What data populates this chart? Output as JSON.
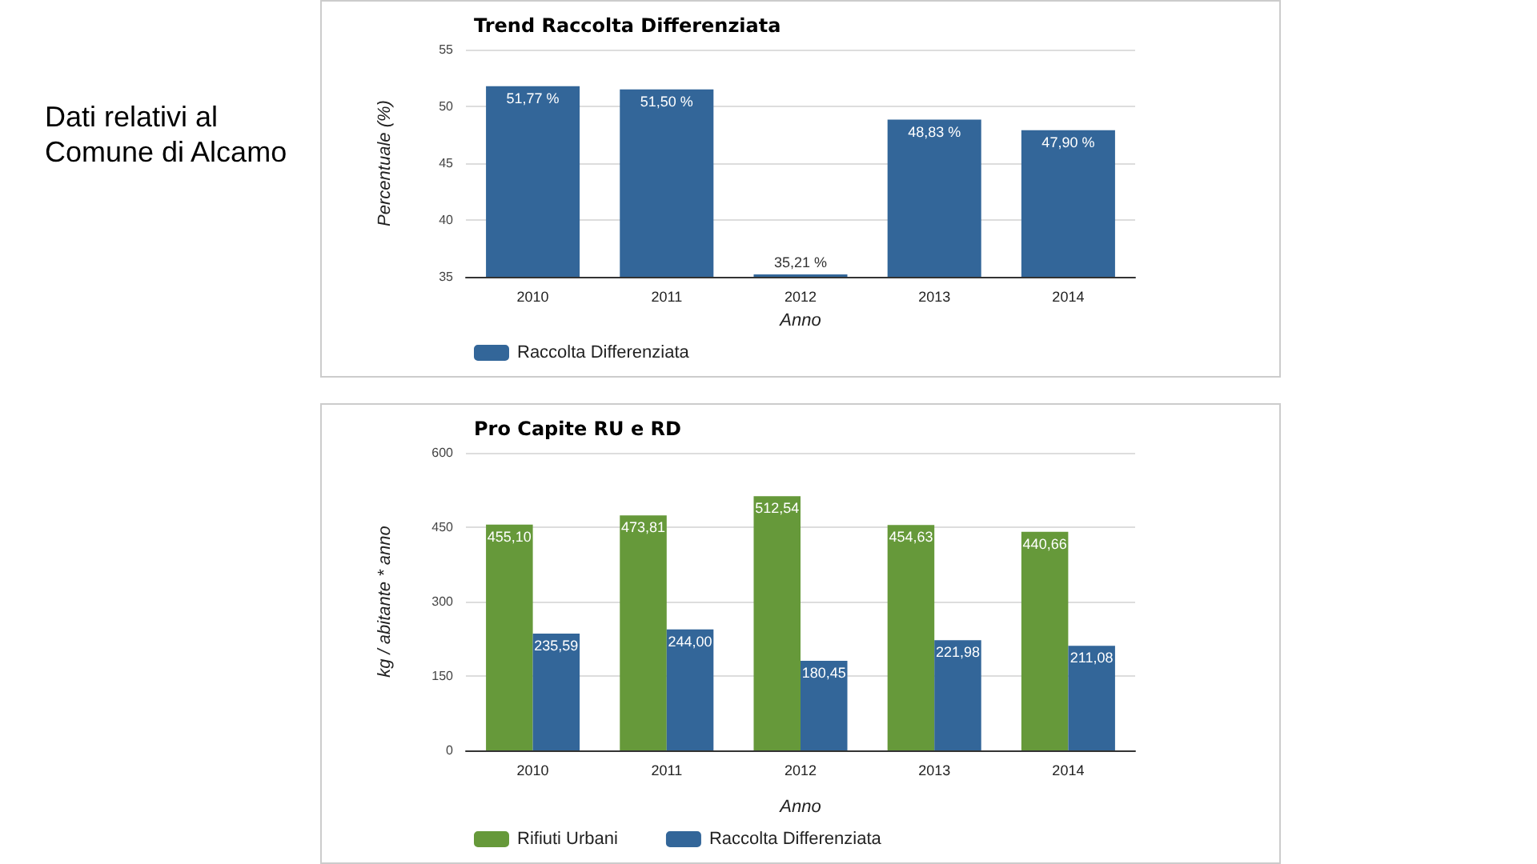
{
  "chart_data": [
    {
      "type": "other",
      "title": "Dati relativi al\nComune di Alcamo"
    },
    {
      "type": "bar",
      "title": "Trend Raccolta Differenziata",
      "xlabel": "Anno",
      "ylabel": "Percentuale (%)",
      "categories": [
        "2010",
        "2011",
        "2012",
        "2013",
        "2014"
      ],
      "series": [
        {
          "name": "Raccolta Differenziata",
          "color": "#336699",
          "values": [
            51.77,
            51.5,
            35.21,
            48.83,
            47.9
          ],
          "value_labels": [
            "51,77 %",
            "51,50 %",
            "35,21 %",
            "48,83 %",
            "47,90 %"
          ]
        }
      ],
      "ylim": [
        35,
        55
      ],
      "yticks": [
        35,
        40,
        45,
        50,
        55
      ],
      "grid": "y",
      "legend": "bottom left"
    },
    {
      "type": "bar",
      "title": "Pro Capite RU e RD",
      "xlabel": "Anno",
      "ylabel": "kg / abitante * anno",
      "categories": [
        "2010",
        "2011",
        "2012",
        "2013",
        "2014"
      ],
      "series": [
        {
          "name": "Rifiuti Urbani",
          "color": "#66993a",
          "values": [
            455.1,
            473.81,
            512.54,
            454.63,
            440.66
          ],
          "value_labels": [
            "455,10",
            "473,81",
            "512,54",
            "454,63",
            "440,66"
          ]
        },
        {
          "name": "Raccolta Differenziata",
          "color": "#336699",
          "values": [
            235.59,
            244.0,
            180.45,
            221.98,
            211.08
          ],
          "value_labels": [
            "235,59",
            "244,00",
            "180,45",
            "221,98",
            "211,08"
          ]
        }
      ],
      "ylim": [
        0,
        600
      ],
      "yticks": [
        0,
        150,
        300,
        450,
        600
      ],
      "grid": "y",
      "legend": "bottom left"
    }
  ]
}
